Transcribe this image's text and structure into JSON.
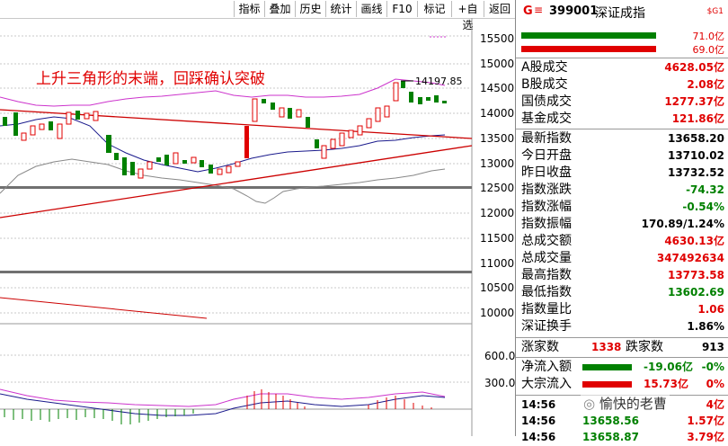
{
  "toolbar": {
    "items": [
      "指标",
      "叠加",
      "历史",
      "统计",
      "画线",
      "F10",
      "标记",
      "+自选",
      "返回"
    ]
  },
  "chart": {
    "annotation": "上升三角形的末端，回踩确认突破",
    "high_label": "14197.85",
    "price_axis": [
      "15500",
      "15000",
      "14500",
      "14000",
      "13500",
      "13000",
      "12500",
      "12000",
      "11500",
      "11000",
      "10500",
      "10000"
    ],
    "vol_axis": [
      "600.0",
      "300.0"
    ],
    "colors": {
      "up": "#e00000",
      "down": "#008000",
      "ma_short": "#1a1a8c",
      "ma_long": "#888888",
      "band": "#cc33cc",
      "trend": "#cc0000"
    }
  },
  "panel": {
    "code_prefix": "G",
    "code": "399001",
    "name": "深证成指",
    "tag": "$G1",
    "bar1_value": "71.0亿",
    "bar2_value": "69.0亿",
    "turnover": [
      {
        "label": "A股成交",
        "value": "4628.05亿"
      },
      {
        "label": "B股成交",
        "value": "2.08亿"
      },
      {
        "label": "国债成交",
        "value": "1277.37亿"
      },
      {
        "label": "基金成交",
        "value": "121.86亿"
      }
    ],
    "stats": [
      {
        "label": "最新指数",
        "value": "13658.20",
        "color": "green"
      },
      {
        "label": "今日开盘",
        "value": "13710.02",
        "color": "green"
      },
      {
        "label": "昨日收盘",
        "value": "13732.52",
        "color": "blk"
      },
      {
        "label": "指数涨跌",
        "value": "-74.32",
        "color": "green"
      },
      {
        "label": "指数涨幅",
        "value": "-0.54%",
        "color": "green"
      },
      {
        "label": "指数振幅",
        "value": "170.89/1.24%",
        "color": "blk"
      },
      {
        "label": "总成交额",
        "value": "4630.13亿",
        "color": "red"
      },
      {
        "label": "总成交量",
        "value": "347492634",
        "color": "red"
      },
      {
        "label": "最高指数",
        "value": "13773.58",
        "color": "red"
      },
      {
        "label": "最低指数",
        "value": "13602.69",
        "color": "green"
      },
      {
        "label": "指数量比",
        "value": "1.06",
        "color": "red"
      },
      {
        "label": "深证换手",
        "value": "1.86%",
        "color": "blk"
      }
    ],
    "advance_label": "涨家数",
    "advance_value": "1338",
    "decline_label": "跌家数",
    "decline_value": "913",
    "netflow_label": "净流入额",
    "netflow_value": "-19.06亿",
    "netflow_pct": "-0%",
    "bulk_label": "大宗流入",
    "bulk_value": "15.73亿",
    "bulk_pct": "0%",
    "watermark": "愉快的老曹",
    "ticks": [
      {
        "time": "14:56",
        "price": "",
        "extra": "4亿"
      },
      {
        "time": "14:56",
        "price": "13658.56",
        "extra": "1.57亿"
      },
      {
        "time": "14:56",
        "price": "13658.87",
        "extra": "3.79亿"
      }
    ]
  }
}
